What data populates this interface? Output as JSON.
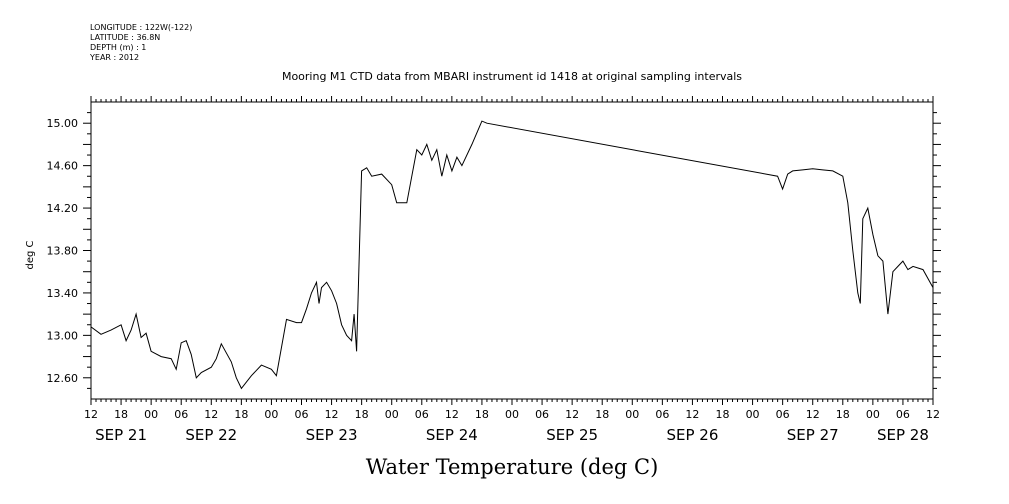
{
  "metadata": {
    "longitude": "LONGITUDE : 122W(-122)",
    "latitude": "LATITUDE : 36.8N",
    "depth": "DEPTH (m) : 1",
    "year": "YEAR : 2012"
  },
  "chart_data": {
    "type": "line",
    "title": "Mooring M1 CTD data from MBARI instrument id 1418 at original sampling intervals",
    "xlabel": "Water Temperature (deg C)",
    "ylabel": "deg C",
    "ylim": [
      12.4,
      15.2
    ],
    "y_ticks": [
      "15.00",
      "14.60",
      "14.20",
      "13.80",
      "13.40",
      "13.00",
      "12.60"
    ],
    "xlim_hours_from_sep21_12": [
      0,
      168
    ],
    "x_hour_labels": [
      "12",
      "18",
      "00",
      "06",
      "12",
      "18",
      "00",
      "06",
      "12",
      "18",
      "00",
      "06",
      "12",
      "18",
      "00",
      "06",
      "12",
      "18",
      "00",
      "06",
      "12",
      "18",
      "00",
      "06",
      "12",
      "18",
      "00",
      "06",
      "12"
    ],
    "x_day_labels": [
      {
        "text": "SEP 21",
        "at": "Sep 21 18:00"
      },
      {
        "text": "SEP 22",
        "at": "Sep 22 12:00"
      },
      {
        "text": "SEP 23",
        "at": "Sep 23 12:00"
      },
      {
        "text": "SEP 24",
        "at": "Sep 24 12:00"
      },
      {
        "text": "SEP 25",
        "at": "Sep 25 12:00"
      },
      {
        "text": "SEP 26",
        "at": "Sep 26 12:00"
      },
      {
        "text": "SEP 27",
        "at": "Sep 27 12:00"
      },
      {
        "text": "SEP 28",
        "at": "Sep 28 06:00"
      }
    ],
    "series": [
      {
        "color": "#000000",
        "x": [
          "Sep 21 12:00",
          "Sep 21 14:00",
          "Sep 21 16:00",
          "Sep 21 18:00",
          "Sep 21 19:00",
          "Sep 21 20:00",
          "Sep 21 21:00",
          "Sep 21 22:00",
          "Sep 21 23:00",
          "Sep 22 00:00",
          "Sep 22 02:00",
          "Sep 22 04:00",
          "Sep 22 05:00",
          "Sep 22 06:00",
          "Sep 22 07:00",
          "Sep 22 08:00",
          "Sep 22 09:00",
          "Sep 22 10:00",
          "Sep 22 12:00",
          "Sep 22 13:00",
          "Sep 22 14:00",
          "Sep 22 16:00",
          "Sep 22 17:00",
          "Sep 22 18:00",
          "Sep 22 20:00",
          "Sep 22 22:00",
          "Sep 23 00:00",
          "Sep 23 01:00",
          "Sep 23 03:00",
          "Sep 23 05:00",
          "Sep 23 06:00",
          "Sep 23 07:00",
          "Sep 23 08:00",
          "Sep 23 09:00",
          "Sep 23 09:30",
          "Sep 23 10:00",
          "Sep 23 11:00",
          "Sep 23 12:00",
          "Sep 23 13:00",
          "Sep 23 14:00",
          "Sep 23 15:00",
          "Sep 23 16:00",
          "Sep 23 16:30",
          "Sep 23 17:00",
          "Sep 23 18:00",
          "Sep 23 19:00",
          "Sep 23 20:00",
          "Sep 23 22:00",
          "Sep 24 00:00",
          "Sep 24 01:00",
          "Sep 24 03:00",
          "Sep 24 04:00",
          "Sep 24 05:00",
          "Sep 24 06:00",
          "Sep 24 07:00",
          "Sep 24 08:00",
          "Sep 24 09:00",
          "Sep 24 10:00",
          "Sep 24 11:00",
          "Sep 24 12:00",
          "Sep 24 13:00",
          "Sep 24 14:00",
          "Sep 24 16:00",
          "Sep 24 18:00",
          "Sep 24 19:00",
          "Sep 27 05:00",
          "Sep 27 06:00",
          "Sep 27 07:00",
          "Sep 27 08:00",
          "Sep 27 10:00",
          "Sep 27 12:00",
          "Sep 27 14:00",
          "Sep 27 16:00",
          "Sep 27 18:00",
          "Sep 27 19:00",
          "Sep 27 20:00",
          "Sep 27 21:00",
          "Sep 27 21:30",
          "Sep 27 22:00",
          "Sep 27 23:00",
          "Sep 28 00:00",
          "Sep 28 01:00",
          "Sep 28 02:00",
          "Sep 28 03:00",
          "Sep 28 04:00",
          "Sep 28 05:00",
          "Sep 28 06:00",
          "Sep 28 07:00",
          "Sep 28 08:00",
          "Sep 28 10:00",
          "Sep 28 12:00"
        ],
        "y": [
          13.08,
          13.01,
          13.05,
          13.1,
          12.95,
          13.05,
          13.2,
          12.98,
          13.02,
          12.85,
          12.8,
          12.78,
          12.68,
          12.93,
          12.95,
          12.82,
          12.6,
          12.65,
          12.7,
          12.78,
          12.92,
          12.75,
          12.6,
          12.5,
          12.62,
          12.72,
          12.68,
          12.62,
          13.15,
          13.12,
          13.12,
          13.25,
          13.4,
          13.5,
          13.3,
          13.45,
          13.5,
          13.42,
          13.3,
          13.1,
          13.0,
          12.95,
          13.2,
          12.85,
          14.55,
          14.58,
          14.5,
          14.52,
          14.42,
          14.25,
          14.25,
          14.5,
          14.75,
          14.7,
          14.8,
          14.65,
          14.75,
          14.5,
          14.7,
          14.55,
          14.68,
          14.6,
          14.8,
          15.02,
          15.0,
          14.5,
          14.38,
          14.52,
          14.55,
          14.56,
          14.57,
          14.56,
          14.55,
          14.5,
          14.25,
          13.8,
          13.4,
          13.3,
          14.1,
          14.2,
          13.95,
          13.75,
          13.7,
          13.2,
          13.6,
          13.65,
          13.7,
          13.62,
          13.65,
          13.62,
          13.45
        ]
      }
    ]
  }
}
